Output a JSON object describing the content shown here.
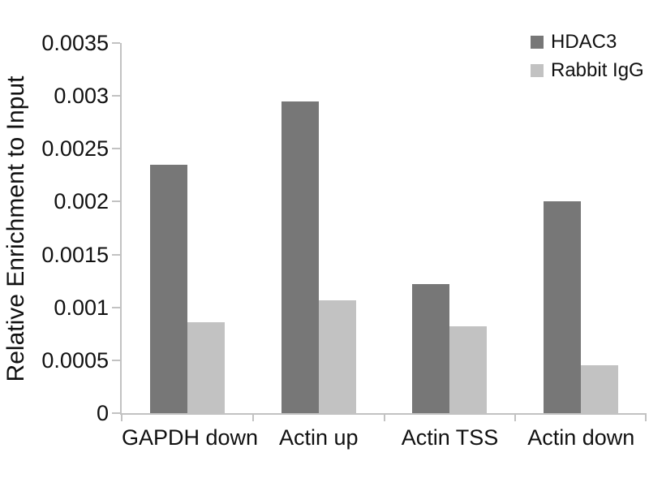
{
  "chart_data": {
    "type": "bar",
    "title": "",
    "xlabel": "",
    "ylabel": "Relative Enrichment to Input",
    "categories": [
      "GAPDH down",
      "Actin up",
      "Actin TSS",
      "Actin down"
    ],
    "series": [
      {
        "name": "HDAC3",
        "color": "#777777",
        "values": [
          0.00235,
          0.00295,
          0.00122,
          0.002
        ]
      },
      {
        "name": "Rabbit IgG",
        "color": "#c2c2c2",
        "values": [
          0.00086,
          0.00107,
          0.00082,
          0.00045
        ]
      }
    ],
    "ylim": [
      0,
      0.0035
    ],
    "yticks": [
      {
        "value": 0,
        "label": "0"
      },
      {
        "value": 0.0005,
        "label": "0.0005"
      },
      {
        "value": 0.001,
        "label": "0.001"
      },
      {
        "value": 0.0015,
        "label": "0.0015"
      },
      {
        "value": 0.002,
        "label": "0.002"
      },
      {
        "value": 0.0025,
        "label": "0.0025"
      },
      {
        "value": 0.003,
        "label": "0.003"
      },
      {
        "value": 0.0035,
        "label": "0.0035"
      }
    ],
    "grid": false,
    "legend_position": "top-right",
    "axis_color": "#c2c2c2",
    "text_color": "#111111"
  }
}
